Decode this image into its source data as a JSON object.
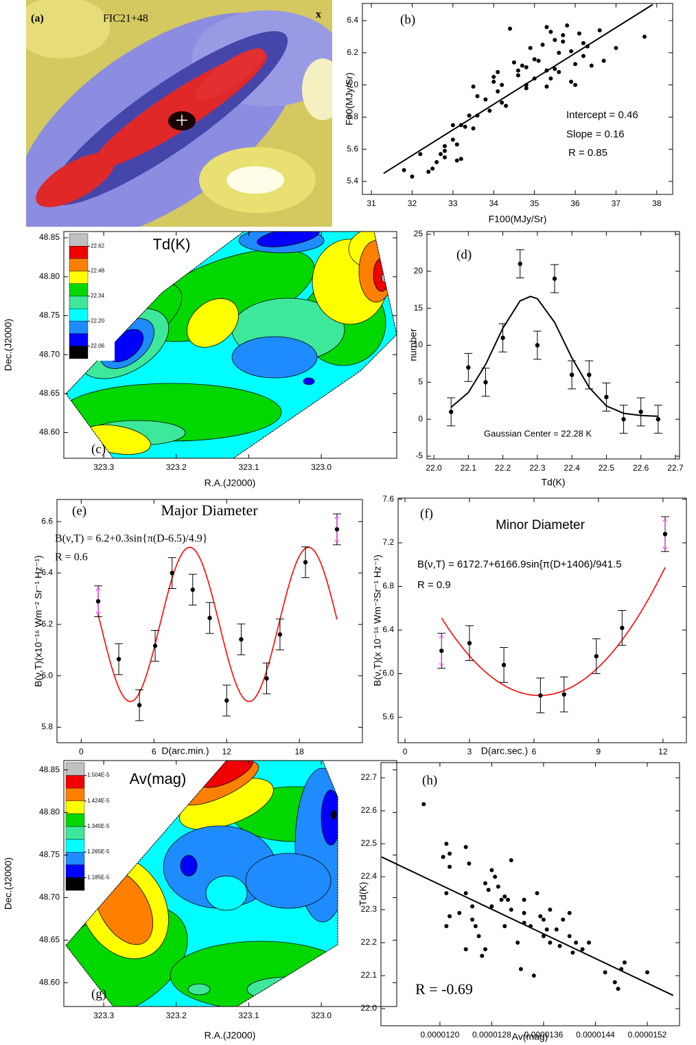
{
  "chart_data": [
    {
      "type": "image",
      "label": "(a)",
      "title": "FIC21+48",
      "marker": "x"
    },
    {
      "type": "scatter",
      "label": "(b)",
      "xlabel": "F100(MJy/Sr)",
      "ylabel": "F60(MJy/Sr)",
      "x": [
        31.8,
        32.0,
        32.2,
        32.4,
        32.5,
        32.6,
        32.7,
        32.8,
        32.8,
        32.8,
        33.0,
        33.1,
        33.2,
        33.2,
        33.4,
        33.0,
        33.1,
        33.3,
        33.5,
        33.5,
        33.6,
        33.6,
        33.8,
        33.9,
        34.0,
        34.1,
        34.0,
        34.1,
        34.2,
        34.2,
        34.3,
        34.4,
        34.5,
        34.6,
        34.6,
        34.7,
        34.8,
        34.8,
        34.8,
        35.0,
        35.0,
        35.1,
        35.2,
        35.3,
        35.3,
        35.4,
        35.4,
        35.5,
        35.5,
        35.6,
        35.7,
        35.8,
        35.9,
        35.9,
        36.0,
        36.0,
        36.1,
        36.2,
        36.3,
        36.4,
        36.6,
        36.7,
        37.0,
        37.7,
        35.3,
        35.6,
        34.9,
        35.7,
        36.2
      ],
      "values": [
        5.47,
        5.43,
        5.57,
        5.46,
        5.48,
        5.52,
        5.57,
        5.62,
        5.59,
        5.55,
        5.66,
        5.63,
        5.75,
        5.54,
        5.81,
        5.75,
        5.53,
        5.74,
        5.73,
        5.99,
        5.93,
        5.81,
        5.91,
        5.84,
        6.05,
        6.08,
        6.02,
        5.96,
        6.0,
        5.89,
        5.87,
        6.35,
        6.14,
        6.09,
        6.06,
        6.12,
        6.11,
        6.0,
        5.98,
        6.16,
        6.04,
        6.15,
        6.25,
        6.36,
        6.09,
        6.33,
        6.04,
        6.28,
        6.1,
        6.2,
        6.31,
        6.37,
        6.21,
        6.02,
        6.13,
        6.0,
        6.32,
        6.26,
        6.24,
        6.12,
        6.34,
        6.15,
        6.23,
        6.3,
        5.99,
        6.08,
        6.23,
        6.27,
        6.18
      ],
      "color": "#000000",
      "fit": {
        "x": [
          31.3,
          37.9
        ],
        "values": [
          5.45,
          6.5
        ],
        "color": "#000000"
      },
      "annotations": [
        "Intercept = 0.46",
        "Slope = 0.16",
        "R = 0.85"
      ],
      "xlim": [
        30.78,
        38.39
      ],
      "xticks": [
        31,
        32,
        33,
        34,
        35,
        36,
        37,
        38
      ],
      "ylim": [
        5.319,
        6.507
      ],
      "yticks": [
        5.4,
        5.6,
        5.8,
        {
          "value": 6,
          "label": "6.0"
        },
        6.2,
        6.4
      ]
    },
    {
      "type": "contour",
      "label": "(c)",
      "title": "Td(K)",
      "xlabel": "R.A.(J2000)",
      "ylabel": "Dec.(J2000)",
      "colorbar": {
        "colors": [
          "#c0c0c0",
          "#f00000",
          "#ff8000",
          "#ffff00",
          "#00d800",
          "#3de89a",
          "#00ffff",
          "#1e8cff",
          "#0000ff",
          "#000000"
        ],
        "ticks": [
          22.62,
          22.48,
          22.34,
          {
            "value": 22.2,
            "label": "22.20"
          },
          22.06
        ]
      },
      "xlim": [
        323.355,
        322.896
      ],
      "xticks": [
        323.3,
        323.2,
        323.1,
        {
          "value": 323,
          "label": "323.0"
        }
      ],
      "ylim": [
        48.567,
        48.858
      ],
      "yticks": [
        {
          "value": 48.6,
          "label": "48.60"
        },
        48.65,
        {
          "value": 48.7,
          "label": "48.70"
        },
        48.75,
        {
          "value": 48.8,
          "label": "48.80"
        },
        48.85
      ]
    },
    {
      "type": "errorbar",
      "label": "(d)",
      "xlabel": "Td(K)",
      "ylabel": "number",
      "x": [
        22.05,
        22.1,
        22.15,
        22.2,
        22.25,
        22.3,
        22.35,
        22.4,
        22.45,
        22.5,
        22.55,
        22.6,
        22.65
      ],
      "values": [
        1,
        7,
        5,
        11,
        21,
        10,
        19,
        6,
        6,
        3,
        0,
        1,
        0
      ],
      "errors": [
        1.9,
        1.9,
        1.9,
        1.9,
        1.9,
        1.9,
        1.9,
        1.9,
        1.9,
        1.9,
        1.9,
        1.9,
        1.9
      ],
      "color": "#000000",
      "fit": {
        "x": [
          22.05,
          22.1,
          22.15,
          22.2,
          22.25,
          22.28,
          22.3,
          22.35,
          22.4,
          22.45,
          22.5,
          22.55,
          22.6,
          22.65
        ],
        "values": [
          1.6,
          3.6,
          7.4,
          12.3,
          16.0,
          16.6,
          16.3,
          13.1,
          8.3,
          4.3,
          1.8,
          0.8,
          0.5,
          0.4
        ],
        "color": "#000000"
      },
      "annotations": [
        "Gaussian Center = 22.28 K"
      ],
      "xlim": [
        21.98,
        22.712
      ],
      "xticks": [
        {
          "value": 22,
          "label": "22.0"
        },
        22.1,
        22.2,
        22.3,
        22.4,
        22.5,
        22.6,
        22.7
      ],
      "ylim": [
        -5.37,
        25.37
      ],
      "yticks": [
        -5,
        0,
        5,
        10,
        15,
        20,
        25
      ]
    },
    {
      "type": "errorbar",
      "label": "(e)",
      "title": "Major Diameter",
      "xlabel": "D(arc.min.)",
      "ylabel": "B(ν,T)(x10⁻¹⁶ Wm⁻² Sr⁻¹ Hz⁻¹)",
      "x": [
        1.4,
        3.1,
        4.8,
        6.1,
        7.5,
        9.2,
        10.6,
        12.0,
        13.2,
        15.3,
        16.4,
        18.5,
        21.1
      ],
      "values": [
        6.29,
        6.065,
        5.886,
        6.117,
        6.4,
        6.335,
        6.225,
        5.904,
        6.142,
        5.99,
        6.161,
        6.442,
        6.57
      ],
      "errors": [
        0.06,
        0.06,
        0.06,
        0.06,
        0.06,
        0.06,
        0.06,
        0.06,
        0.06,
        0.06,
        0.06,
        0.06,
        0.06
      ],
      "color": "#000000",
      "fit": {
        "offset": 6.2,
        "amplitude": 0.3,
        "shift": -6.5,
        "period": 4.9,
        "range": [
          1.4,
          21.1
        ],
        "color": "#ff0000"
      },
      "annotations": [
        "B(ν,T) = 6.2+0.3sin{π(D-6.5)/4.9}",
        "R = 0.6"
      ],
      "xlim": [
        -2.0,
        23.2
      ],
      "xticks": [
        0,
        6,
        12,
        18
      ],
      "ylim": [
        5.74,
        6.686
      ],
      "yticks": [
        5.8,
        {
          "value": 6,
          "label": "6.0"
        },
        6.2,
        6.4,
        6.6
      ]
    },
    {
      "type": "errorbar",
      "label": "(f)",
      "title": "Minor Diameter",
      "xlabel": "D(arc.sec.)",
      "ylabel": "B(ν,T)(x 10⁻¹⁶ Wm⁻²Sr⁻¹ Hz⁻¹)",
      "x": [
        1.7,
        3.0,
        4.6,
        6.3,
        7.4,
        8.9,
        10.1,
        12.1
      ],
      "values": [
        6.21,
        6.28,
        6.08,
        5.8,
        5.81,
        6.16,
        6.42,
        7.28
      ],
      "errors": [
        0.16,
        0.16,
        0.16,
        0.16,
        0.16,
        0.16,
        0.16,
        0.16
      ],
      "color": "#000000",
      "fit": {
        "offset": 6172.7,
        "amplitude": 6166.9,
        "shift": 1406,
        "period": 941.5,
        "range": [
          1.7,
          12.1
        ],
        "color": "#ff0000"
      },
      "annotations": [
        "B(ν,T) = 6172.7+6166.9sin{π(D+1406)/941.5",
        "R = 0.9"
      ],
      "xlim": [
        -0.32,
        13.09
      ],
      "xticks": [
        0,
        3,
        6,
        9,
        12
      ],
      "ylim": [
        5.367,
        7.61
      ],
      "yticks": [
        5.6,
        {
          "value": 6,
          "label": "6.0"
        },
        6.4,
        6.8,
        7.2,
        7.6
      ]
    },
    {
      "type": "contour",
      "label": "(g)",
      "title": "Av(mag)",
      "xlabel": "R.A.(J2000)",
      "ylabel": "Dec.(J2000)",
      "colorbar": {
        "colors": [
          "#c0c0c0",
          "#f00000",
          "#ff8000",
          "#ffff00",
          "#00d800",
          "#3de89a",
          "#00ffff",
          "#1e8cff",
          "#0000ff",
          "#000000"
        ],
        "ticks": [
          {
            "value": 1.504e-05,
            "label": "1.504E-5"
          },
          {
            "value": 1.424e-05,
            "label": "1.424E-5"
          },
          {
            "value": 1.345e-05,
            "label": "1.345E-5"
          },
          {
            "value": 1.265e-05,
            "label": "1.265E-5"
          },
          {
            "value": 1.185e-05,
            "label": "1.185E-5"
          }
        ]
      },
      "xlim": [
        323.355,
        322.896
      ],
      "xticks": [
        323.3,
        323.2,
        323.1,
        {
          "value": 323,
          "label": "323.0"
        }
      ],
      "ylim": [
        48.572,
        48.861
      ],
      "yticks": [
        {
          "value": 48.6,
          "label": "48.60"
        },
        48.65,
        {
          "value": 48.7,
          "label": "48.70"
        },
        48.75,
        {
          "value": 48.8,
          "label": "48.80"
        },
        48.85
      ]
    },
    {
      "type": "scatter",
      "label": "(h)",
      "xlabel": "Av(mag)",
      "ylabel": "Td(K)",
      "x": [
        1.175e-05,
        1.205e-05,
        1.21e-05,
        1.215e-05,
        1.215e-05,
        1.21e-05,
        1.215e-05,
        1.21e-05,
        1.24e-05,
        1.245e-05,
        1.24e-05,
        1.25e-05,
        1.25e-05,
        1.24e-05,
        1.255e-05,
        1.26e-05,
        1.265e-05,
        1.27e-05,
        1.27e-05,
        1.275e-05,
        1.28e-05,
        1.285e-05,
        1.29e-05,
        1.295e-05,
        1.3e-05,
        1.305e-05,
        1.3e-05,
        1.31e-05,
        1.31e-05,
        1.32e-05,
        1.33e-05,
        1.33e-05,
        1.325e-05,
        1.34e-05,
        1.345e-05,
        1.35e-05,
        1.355e-05,
        1.36e-05,
        1.365e-05,
        1.37e-05,
        1.37e-05,
        1.38e-05,
        1.385e-05,
        1.39e-05,
        1.4e-05,
        1.405e-05,
        1.41e-05,
        1.42e-05,
        1.43e-05,
        1.4e-05,
        1.455e-05,
        1.47e-05,
        1.475e-05,
        1.48e-05,
        1.485e-05,
        1.52e-05,
        1.33e-05,
        1.28e-05,
        1.36e-05,
        1.23e-05
      ],
      "values": [
        22.62,
        22.46,
        22.5,
        22.47,
        22.43,
        22.35,
        22.28,
        22.25,
        22.49,
        22.44,
        22.35,
        22.31,
        22.27,
        22.18,
        22.25,
        22.22,
        22.16,
        22.18,
        22.38,
        22.36,
        22.42,
        22.4,
        22.37,
        22.33,
        22.34,
        22.33,
        22.25,
        22.45,
        22.3,
        22.2,
        22.33,
        22.26,
        22.12,
        22.25,
        22.1,
        22.35,
        22.28,
        22.22,
        22.24,
        22.3,
        22.2,
        22.24,
        22.19,
        22.27,
        22.22,
        22.17,
        22.2,
        22.18,
        22.2,
        22.29,
        22.11,
        22.08,
        22.06,
        22.12,
        22.14,
        22.11,
        22.29,
        22.31,
        22.27,
        22.29
      ],
      "color": "#000000",
      "fit": {
        "x": [
          1.11e-05,
          1.56e-05
        ],
        "values": [
          22.46,
          22.04
        ],
        "color": "#000000"
      },
      "annotations": [
        "R = -0.69"
      ],
      "xlim": [
        1.109e-05,
        1.5698e-05
      ],
      "xticks": [
        {
          "value": 1.2e-05,
          "label": "0.0000120"
        },
        {
          "value": 1.28e-05,
          "label": "0.0000128"
        },
        {
          "value": 1.36e-05,
          "label": "0.0000136"
        },
        {
          "value": 1.44e-05,
          "label": "0.0000144"
        },
        {
          "value": 1.52e-05,
          "label": "0.0000152"
        }
      ],
      "ylim": [
        21.948,
        22.746
      ],
      "yticks": [
        {
          "value": 22,
          "label": "22.0"
        },
        22.1,
        22.2,
        22.3,
        22.4,
        22.5,
        22.6,
        22.7
      ]
    }
  ]
}
